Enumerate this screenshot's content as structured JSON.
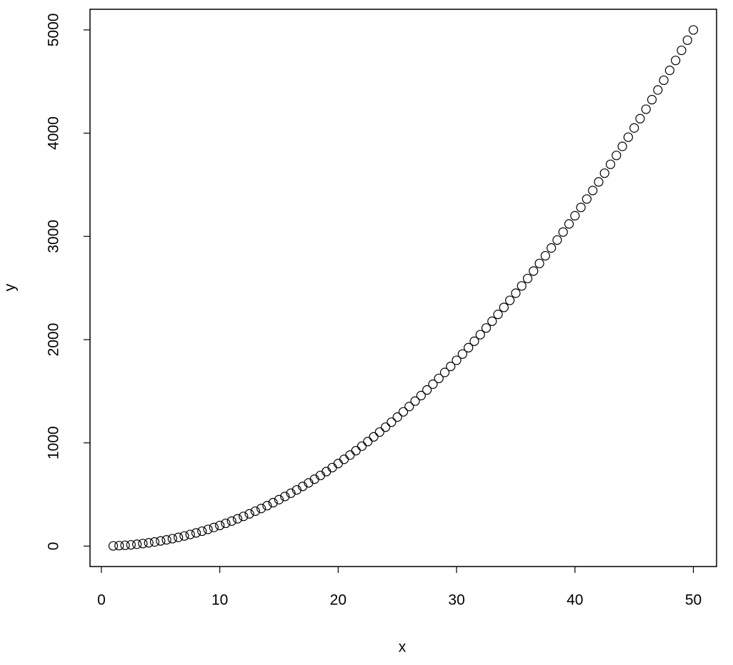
{
  "chart_data": {
    "type": "scatter",
    "x_label": "x",
    "y_label": "y",
    "x": [
      1,
      1.5,
      2,
      2.5,
      3,
      3.5,
      4,
      4.5,
      5,
      5.5,
      6,
      6.5,
      7,
      7.5,
      8,
      8.5,
      9,
      9.5,
      10,
      10.5,
      11,
      11.5,
      12,
      12.5,
      13,
      13.5,
      14,
      14.5,
      15,
      15.5,
      16,
      16.5,
      17,
      17.5,
      18,
      18.5,
      19,
      19.5,
      20,
      20.5,
      21,
      21.5,
      22,
      22.5,
      23,
      23.5,
      24,
      24.5,
      25,
      25.5,
      26,
      26.5,
      27,
      27.5,
      28,
      28.5,
      29,
      29.5,
      30,
      30.5,
      31,
      31.5,
      32,
      32.5,
      33,
      33.5,
      34,
      34.5,
      35,
      35.5,
      36,
      36.5,
      37,
      37.5,
      38,
      38.5,
      39,
      39.5,
      40,
      40.5,
      41,
      41.5,
      42,
      42.5,
      43,
      43.5,
      44,
      44.5,
      45,
      45.5,
      46,
      46.5,
      47,
      47.5,
      48,
      48.5,
      49,
      49.5,
      50
    ],
    "values": [
      2,
      4.5,
      8,
      12.5,
      18,
      24.5,
      32,
      40.5,
      50,
      60.5,
      72,
      84.5,
      98,
      112.5,
      128,
      144.5,
      162,
      180.5,
      200,
      220.5,
      242,
      264.5,
      288,
      312.5,
      338,
      364.5,
      392,
      420.5,
      450,
      480.5,
      512,
      544.5,
      578,
      612.5,
      648,
      684.5,
      722,
      760.5,
      800,
      840.5,
      882,
      924.5,
      968,
      1012.5,
      1058,
      1104.5,
      1152,
      1200.5,
      1250,
      1300.5,
      1352,
      1404.5,
      1458,
      1512.5,
      1568,
      1624.5,
      1682,
      1740.5,
      1800,
      1860.5,
      1922,
      1984.5,
      2048,
      2112.5,
      2178,
      2244.5,
      2312,
      2380.5,
      2450,
      2520.5,
      2592,
      2664.5,
      2738,
      2812.5,
      2888,
      2964.5,
      3042,
      3120.5,
      3200,
      3280.5,
      3362,
      3444.5,
      3528,
      3612.5,
      3698,
      3784.5,
      3872,
      3960.5,
      4050,
      4140.5,
      4232,
      4324.5,
      4418,
      4512.5,
      4608,
      4704.5,
      4802,
      4900.5,
      5000
    ],
    "color": "#000000",
    "xlim": [
      -0.96,
      51.96
    ],
    "xticks": [
      0,
      10,
      20,
      30,
      40,
      50
    ],
    "ylim": [
      -197.92,
      5199.92
    ],
    "yticks": [
      0,
      1000,
      2000,
      3000,
      4000,
      5000
    ]
  }
}
